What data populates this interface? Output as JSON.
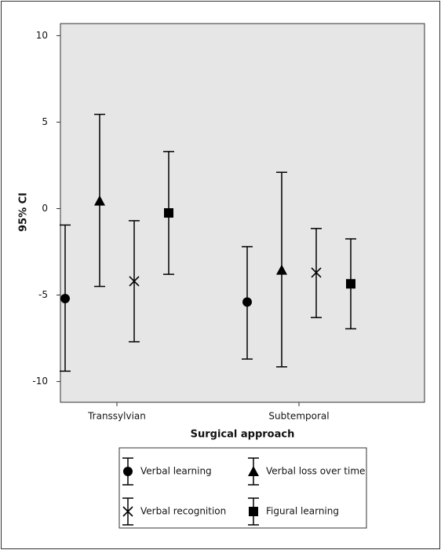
{
  "chart_data": {
    "type": "errorbar",
    "y_label": "95% CI",
    "x_label": "Surgical approach",
    "categories": [
      "Transsylvian",
      "Subtemporal"
    ],
    "ylim": [
      -11.2,
      10.7
    ],
    "yticks": [
      10,
      5,
      0,
      -5,
      -10
    ],
    "background": "#e6e6e6",
    "series": [
      {
        "name": "Verbal learning",
        "marker": "circle",
        "color": "#000000",
        "values": [
          -5.2,
          -5.4
        ],
        "lower": [
          -9.4,
          -8.7
        ],
        "upper": [
          -0.95,
          -2.2
        ]
      },
      {
        "name": "Verbal loss over time",
        "marker": "triangle",
        "color": "#000000",
        "values": [
          0.45,
          -3.55
        ],
        "lower": [
          -4.5,
          -9.15
        ],
        "upper": [
          5.45,
          2.1
        ]
      },
      {
        "name": "Verbal recognition",
        "marker": "cross",
        "color": "#000000",
        "values": [
          -4.2,
          -3.7
        ],
        "lower": [
          -7.7,
          -6.3
        ],
        "upper": [
          -0.7,
          -1.15
        ]
      },
      {
        "name": "Figural learning",
        "marker": "square",
        "color": "#000000",
        "values": [
          -0.25,
          -4.35
        ],
        "lower": [
          -3.8,
          -6.95
        ],
        "upper": [
          3.3,
          -1.75
        ]
      }
    ]
  }
}
